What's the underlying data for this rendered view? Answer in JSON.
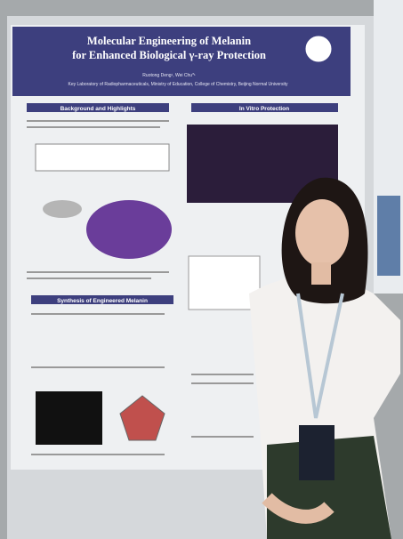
{
  "poster": {
    "title": "Molecular Engineering of Melanin for Enhanced Biological γ-ray Protection",
    "authors": "Ruotong Deng¹, Wei Chu*¹",
    "affiliation": "Key Laboratory of Radiopharmaceuticals, Ministry of Education, College of Chemistry, Beijing Normal University",
    "sections": [
      "Background and Highlights",
      "In Vitro Protection",
      "Synthesis of Engineered Melanin"
    ]
  }
}
